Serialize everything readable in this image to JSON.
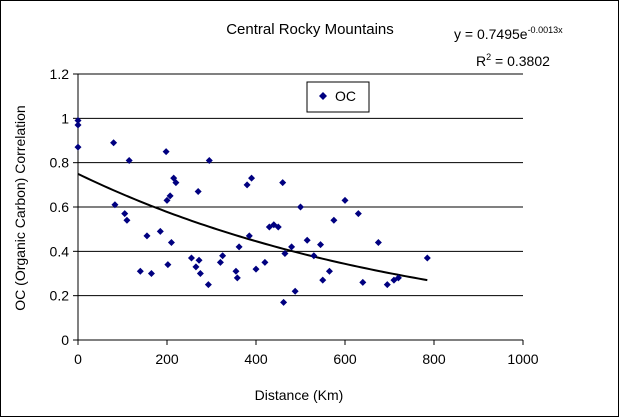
{
  "chart_data": {
    "type": "scatter",
    "title": "Central Rocky Mountains",
    "xlabel": "Distance (Km)",
    "ylabel": "OC (Organic Carbon) Correlation",
    "xlim": [
      0,
      1000
    ],
    "ylim": [
      0,
      1.2
    ],
    "xticks": [
      "0",
      "200",
      "400",
      "600",
      "800",
      "1000"
    ],
    "yticks": [
      "0",
      "0.2",
      "0.4",
      "0.6",
      "0.8",
      "1",
      "1.2"
    ],
    "grid": "horizontal",
    "legend_position": "top-center",
    "series": [
      {
        "name": "OC",
        "color": "#000080",
        "marker": "diamond",
        "points": [
          [
            0,
            0.99
          ],
          [
            0,
            0.97
          ],
          [
            0,
            0.87
          ],
          [
            80,
            0.89
          ],
          [
            83,
            0.61
          ],
          [
            105,
            0.57
          ],
          [
            110,
            0.54
          ],
          [
            115,
            0.81
          ],
          [
            140,
            0.31
          ],
          [
            155,
            0.47
          ],
          [
            165,
            0.3
          ],
          [
            185,
            0.49
          ],
          [
            198,
            0.85
          ],
          [
            200,
            0.63
          ],
          [
            202,
            0.34
          ],
          [
            207,
            0.65
          ],
          [
            210,
            0.44
          ],
          [
            215,
            0.73
          ],
          [
            220,
            0.71
          ],
          [
            255,
            0.37
          ],
          [
            265,
            0.33
          ],
          [
            270,
            0.67
          ],
          [
            272,
            0.36
          ],
          [
            275,
            0.3
          ],
          [
            293,
            0.25
          ],
          [
            295,
            0.81
          ],
          [
            320,
            0.35
          ],
          [
            325,
            0.38
          ],
          [
            355,
            0.31
          ],
          [
            358,
            0.28
          ],
          [
            362,
            0.42
          ],
          [
            380,
            0.7
          ],
          [
            385,
            0.47
          ],
          [
            390,
            0.73
          ],
          [
            400,
            0.32
          ],
          [
            420,
            0.35
          ],
          [
            430,
            0.51
          ],
          [
            440,
            0.52
          ],
          [
            450,
            0.51
          ],
          [
            460,
            0.71
          ],
          [
            462,
            0.17
          ],
          [
            465,
            0.39
          ],
          [
            480,
            0.42
          ],
          [
            488,
            0.22
          ],
          [
            500,
            0.6
          ],
          [
            515,
            0.45
          ],
          [
            530,
            0.38
          ],
          [
            545,
            0.43
          ],
          [
            550,
            0.27
          ],
          [
            565,
            0.31
          ],
          [
            575,
            0.54
          ],
          [
            600,
            0.63
          ],
          [
            630,
            0.57
          ],
          [
            640,
            0.26
          ],
          [
            675,
            0.44
          ],
          [
            695,
            0.25
          ],
          [
            710,
            0.27
          ],
          [
            720,
            0.28
          ],
          [
            785,
            0.37
          ]
        ]
      }
    ],
    "trendline": {
      "type": "exponential",
      "a": 0.7495,
      "b": -0.0013,
      "x_range": [
        0,
        785
      ],
      "equation_prefix": "y = 0.7495e",
      "equation_exponent": "-0.0013x",
      "r2_prefix": "R",
      "r2_sup": "2",
      "r2_value": " = 0.3802"
    }
  }
}
